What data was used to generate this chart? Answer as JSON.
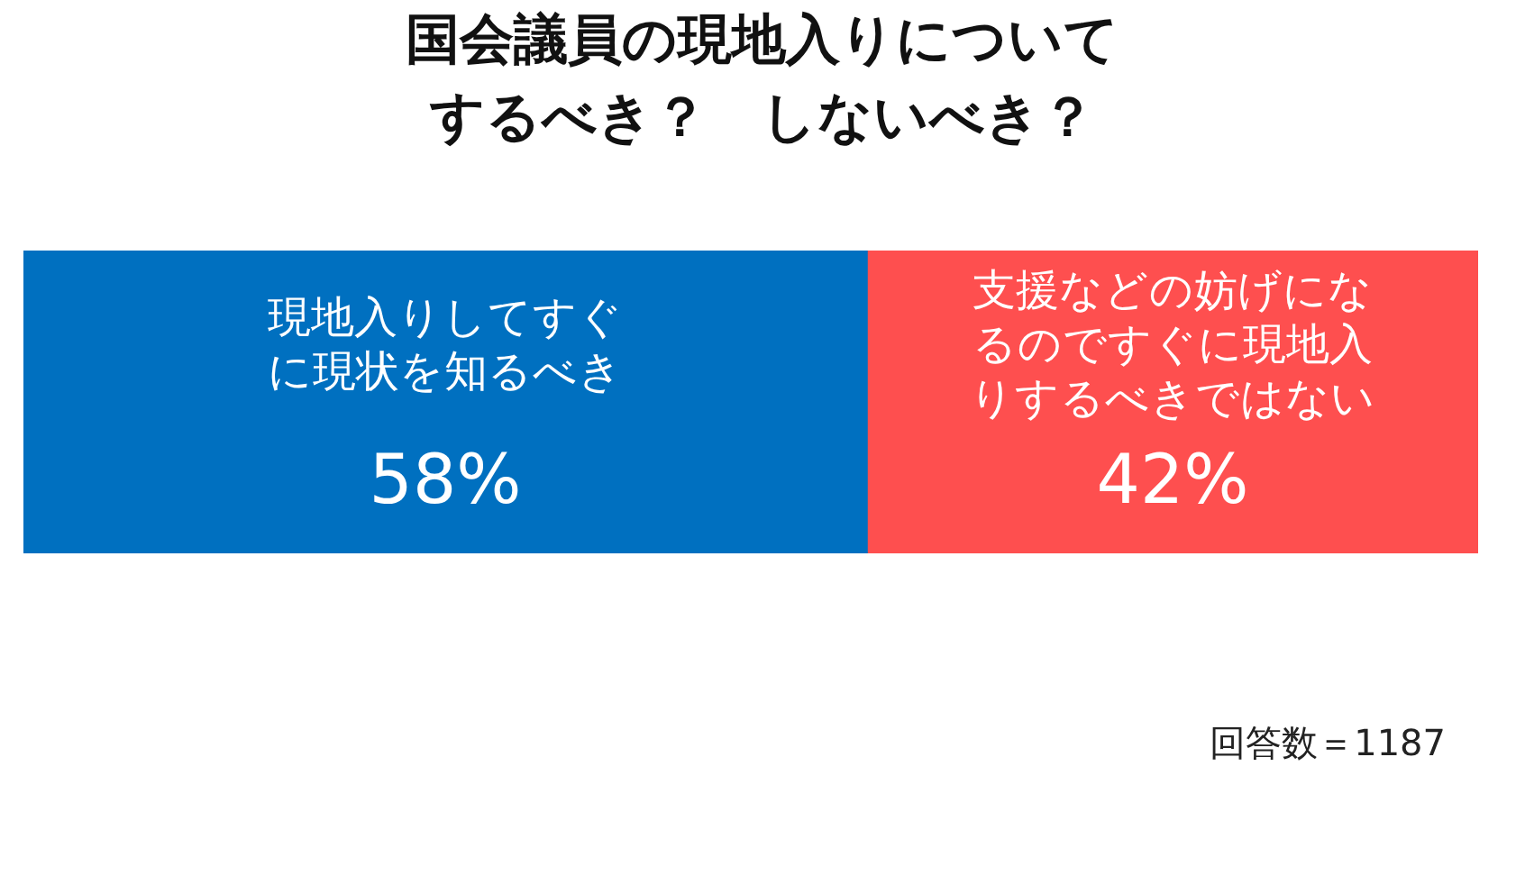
{
  "chart_data": {
    "type": "bar",
    "orientation": "horizontal",
    "stacked": true,
    "title": "国会議員の現地入りについてするべき？　しないべき？",
    "categories": [
      null
    ],
    "series": [
      {
        "name": "現地入りしてすぐに現状を知るべき",
        "color": "#0070c0",
        "values": [
          58
        ],
        "value_labels": [
          "58%"
        ]
      },
      {
        "name": "支援などの妨げになるのですぐに現地入りするべきではない",
        "color": "#fe4f4f",
        "values": [
          42
        ],
        "value_labels": [
          "42%"
        ]
      }
    ],
    "xlim": [
      0,
      100
    ],
    "tick_labels": false,
    "grid": false,
    "legend": false,
    "annotations": [
      "回答数＝1187"
    ]
  }
}
